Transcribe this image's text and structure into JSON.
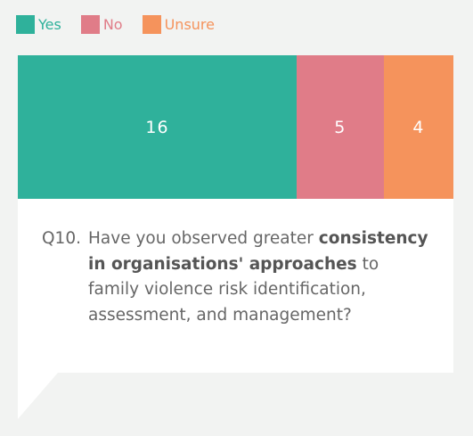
{
  "legend": [
    {
      "label": "Yes",
      "color": "#2fb19b"
    },
    {
      "label": "No",
      "color": "#e07c88"
    },
    {
      "label": "Unsure",
      "color": "#f5935c"
    }
  ],
  "chart_data": {
    "type": "bar",
    "orientation": "horizontal-stacked",
    "categories": [
      "Yes",
      "No",
      "Unsure"
    ],
    "values": [
      16,
      5,
      4
    ],
    "colors": [
      "#2fb19b",
      "#e07c88",
      "#f5935c"
    ],
    "legend_position": "top-left"
  },
  "question": {
    "number": "Q10.",
    "part1": "Have you observed greater",
    "bold": "consistency in organisations' approaches",
    "part2": "to family violence risk identification, assessment, and management?"
  }
}
